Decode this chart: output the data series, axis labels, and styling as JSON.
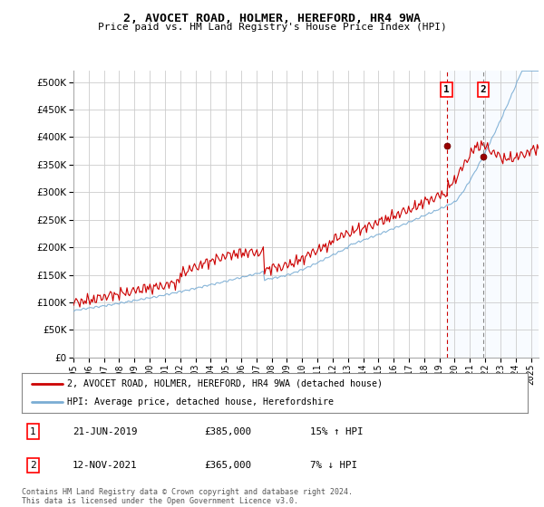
{
  "title_line1": "2, AVOCET ROAD, HOLMER, HEREFORD, HR4 9WA",
  "title_line2": "Price paid vs. HM Land Registry's House Price Index (HPI)",
  "ylim": [
    0,
    520000
  ],
  "yticks": [
    0,
    50000,
    100000,
    150000,
    200000,
    250000,
    300000,
    350000,
    400000,
    450000,
    500000
  ],
  "ytick_labels": [
    "£0",
    "£50K",
    "£100K",
    "£150K",
    "£200K",
    "£250K",
    "£300K",
    "£350K",
    "£400K",
    "£450K",
    "£500K"
  ],
  "xlim_start": 1995.0,
  "xlim_end": 2025.5,
  "xtick_years": [
    1995,
    1996,
    1997,
    1998,
    1999,
    2000,
    2001,
    2002,
    2003,
    2004,
    2005,
    2006,
    2007,
    2008,
    2009,
    2010,
    2011,
    2012,
    2013,
    2014,
    2015,
    2016,
    2017,
    2018,
    2019,
    2020,
    2021,
    2022,
    2023,
    2024,
    2025
  ],
  "hpi_color": "#7aadd4",
  "price_color": "#cc0000",
  "sale1_date": 2019.47,
  "sale1_price": 385000,
  "sale1_label": "1",
  "sale2_date": 2021.87,
  "sale2_price": 365000,
  "sale2_label": "2",
  "legend_line1": "2, AVOCET ROAD, HOLMER, HEREFORD, HR4 9WA (detached house)",
  "legend_line2": "HPI: Average price, detached house, Herefordshire",
  "table_row1": [
    "1",
    "21-JUN-2019",
    "£385,000",
    "15% ↑ HPI"
  ],
  "table_row2": [
    "2",
    "12-NOV-2021",
    "£365,000",
    "7% ↓ HPI"
  ],
  "footnote": "Contains HM Land Registry data © Crown copyright and database right 2024.\nThis data is licensed under the Open Government Licence v3.0.",
  "bg_color": "#ffffff",
  "grid_color": "#cccccc",
  "shaded_color": "#ddeeff"
}
